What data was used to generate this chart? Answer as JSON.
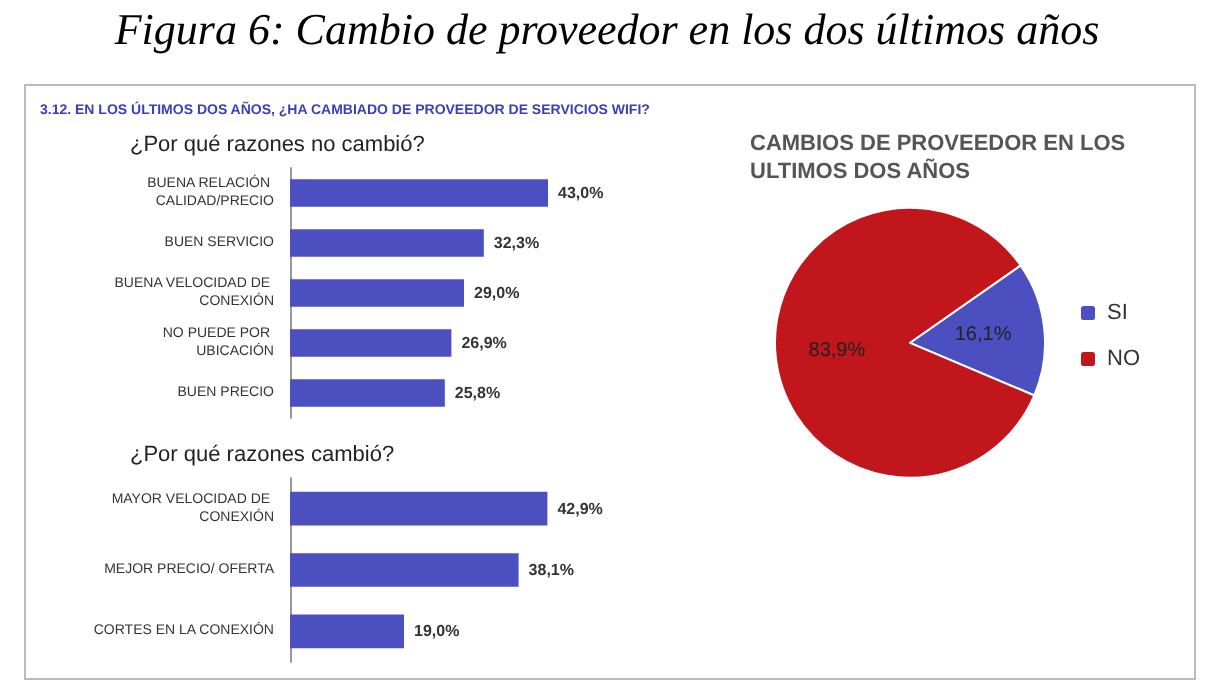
{
  "chart_data": [
    {
      "type": "bar",
      "orientation": "horizontal",
      "title": "¿Por qué razones no cambió?",
      "annotations": [
        "Figura 6: Cambio de proveedor en los dos últimos años",
        "3.12. EN LOS ÚLTIMOS DOS AÑOS, ¿HA CAMBIADO DE PROVEEDOR DE SERVICIOS WIFI?"
      ],
      "categories": [
        "BUENA RELACIÓN CALIDAD/PRECIO",
        "BUEN SERVICIO",
        "BUENA VELOCIDAD DE CONEXIÓN",
        "NO PUEDE POR UBICACIÓN",
        "BUEN PRECIO"
      ],
      "values": [
        43.0,
        32.3,
        29.0,
        26.9,
        25.8
      ],
      "value_labels": [
        "43,0%",
        "32,3%",
        "29,0%",
        "26,9%",
        "25,8%"
      ],
      "color": "#4b4fc0",
      "grid": false,
      "legend": false
    },
    {
      "type": "bar",
      "orientation": "horizontal",
      "title": "¿Por qué razones cambió?",
      "categories": [
        "MAYOR VELOCIDAD DE CONEXIÓN",
        "MEJOR PRECIO/ OFERTA",
        "CORTES EN LA CONEXIÓN"
      ],
      "values": [
        42.9,
        38.1,
        19.0
      ],
      "value_labels": [
        "42,9%",
        "38,1%",
        "19,0%"
      ],
      "color": "#4b4fc0",
      "grid": false,
      "legend": false
    },
    {
      "type": "pie",
      "title": "CAMBIOS DE PROVEEDOR EN LOS ULTIMOS DOS AÑOS",
      "categories": [
        "SI",
        "NO"
      ],
      "values": [
        16.1,
        83.9
      ],
      "value_labels": [
        "16,1%",
        "83,9%"
      ],
      "colors": [
        "#4b4fc0",
        "#c0161c"
      ],
      "legend": "right"
    }
  ]
}
